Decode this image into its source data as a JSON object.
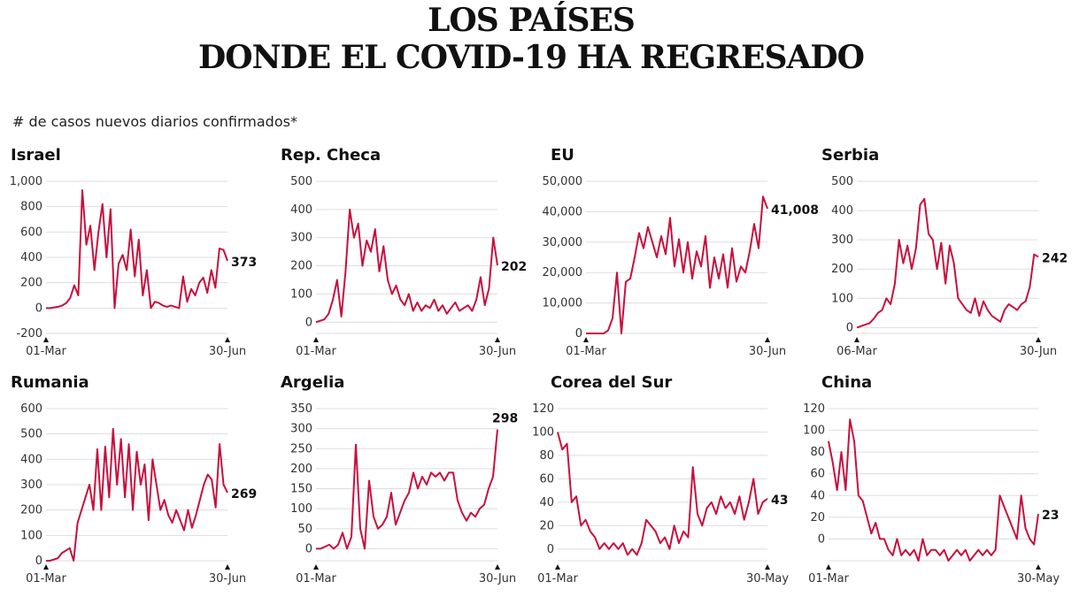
{
  "title_line1": "LOS PAÍSES",
  "title_line2": "DONDE EL COVID-19 HA REGRESADO",
  "subtitle": "# de casos nuevos diarios confirmados*",
  "line_color": "#c8103e",
  "chart_data": [
    {
      "type": "line",
      "title": "Israel",
      "ticks": [
        1000,
        800,
        600,
        400,
        200,
        0,
        -200
      ],
      "ylim": [
        -200,
        1000
      ],
      "xstart": "01-Mar",
      "xend": "30-Jun",
      "end_label": "373",
      "values": [
        0,
        0,
        5,
        10,
        20,
        40,
        80,
        180,
        100,
        930,
        500,
        650,
        300,
        600,
        820,
        400,
        780,
        0,
        350,
        420,
        300,
        620,
        250,
        540,
        100,
        300,
        0,
        50,
        40,
        20,
        10,
        20,
        10,
        0,
        250,
        50,
        150,
        100,
        200,
        240,
        120,
        300,
        160,
        470,
        460,
        373
      ]
    },
    {
      "type": "line",
      "title": "Rep. Checa",
      "ticks": [
        500,
        400,
        300,
        200,
        100,
        0
      ],
      "ylim": [
        -40,
        500
      ],
      "xstart": "01-Mar",
      "xend": "30-Jun",
      "end_label": "202",
      "values": [
        0,
        5,
        10,
        30,
        80,
        150,
        20,
        180,
        400,
        300,
        350,
        200,
        290,
        250,
        330,
        180,
        270,
        150,
        100,
        130,
        80,
        60,
        100,
        40,
        70,
        40,
        60,
        50,
        80,
        40,
        60,
        30,
        50,
        70,
        40,
        50,
        60,
        40,
        80,
        160,
        60,
        120,
        300,
        202
      ]
    },
    {
      "type": "line",
      "title": "EU",
      "ticks": [
        50000,
        40000,
        30000,
        20000,
        10000,
        0
      ],
      "ylim": [
        0,
        50000
      ],
      "xstart": "01-Mar",
      "xend": "30-Jun",
      "end_label": "41,008",
      "values": [
        0,
        0,
        0,
        0,
        0,
        1000,
        5000,
        20000,
        0,
        17000,
        18000,
        25000,
        33000,
        28000,
        35000,
        30000,
        25000,
        32000,
        26000,
        38000,
        22000,
        31000,
        20000,
        30000,
        18000,
        27000,
        22000,
        32000,
        15000,
        25000,
        18000,
        26000,
        15000,
        28000,
        17000,
        22000,
        20000,
        27000,
        36000,
        28000,
        45000,
        41008
      ]
    },
    {
      "type": "line",
      "title": "Serbia",
      "ticks": [
        500,
        400,
        300,
        200,
        100,
        0
      ],
      "ylim": [
        -20,
        500
      ],
      "xstart": "06-Mar",
      "xend": "30-Jun",
      "end_label": "242",
      "values": [
        0,
        5,
        10,
        15,
        30,
        50,
        60,
        100,
        80,
        150,
        300,
        220,
        280,
        200,
        270,
        420,
        440,
        320,
        300,
        200,
        290,
        150,
        280,
        220,
        100,
        80,
        60,
        50,
        100,
        40,
        90,
        60,
        40,
        30,
        20,
        60,
        80,
        70,
        60,
        80,
        90,
        140,
        250,
        242
      ]
    },
    {
      "type": "line",
      "title": "Rumania",
      "ticks": [
        600,
        500,
        400,
        300,
        200,
        100,
        0
      ],
      "ylim": [
        0,
        600
      ],
      "xstart": "01-Mar",
      "xend": "30-Jun",
      "end_label": "269",
      "values": [
        0,
        0,
        5,
        10,
        30,
        40,
        50,
        0,
        150,
        200,
        250,
        300,
        200,
        440,
        200,
        450,
        250,
        520,
        300,
        480,
        250,
        460,
        200,
        430,
        300,
        380,
        160,
        400,
        300,
        200,
        240,
        180,
        150,
        200,
        160,
        120,
        200,
        130,
        180,
        240,
        300,
        340,
        320,
        210,
        460,
        300,
        269
      ]
    },
    {
      "type": "line",
      "title": "Argelia",
      "ticks": [
        350,
        300,
        250,
        200,
        150,
        100,
        50,
        0
      ],
      "ylim": [
        -30,
        350
      ],
      "xstart": "01-Mar",
      "xend": "30-Jun",
      "end_label": "298",
      "values": [
        0,
        0,
        5,
        10,
        0,
        10,
        40,
        0,
        30,
        260,
        50,
        0,
        170,
        80,
        50,
        60,
        80,
        140,
        60,
        90,
        120,
        140,
        190,
        150,
        180,
        160,
        190,
        180,
        190,
        170,
        190,
        190,
        120,
        90,
        70,
        90,
        80,
        100,
        110,
        150,
        180,
        298
      ]
    },
    {
      "type": "line",
      "title": "Corea del Sur",
      "ticks": [
        120,
        100,
        80,
        60,
        40,
        20,
        0
      ],
      "ylim": [
        -10,
        120
      ],
      "xstart": "01-Mar",
      "xend": "30-May",
      "end_label": "43",
      "values": [
        100,
        85,
        90,
        40,
        45,
        20,
        25,
        15,
        10,
        0,
        5,
        0,
        5,
        0,
        5,
        -5,
        0,
        -5,
        5,
        25,
        20,
        15,
        5,
        10,
        0,
        20,
        5,
        15,
        10,
        70,
        30,
        20,
        35,
        40,
        30,
        45,
        35,
        40,
        30,
        45,
        25,
        40,
        60,
        30,
        40,
        43
      ]
    },
    {
      "type": "line",
      "title": "China",
      "ticks": [
        120,
        100,
        80,
        60,
        40,
        20,
        0
      ],
      "ylim": [
        -20,
        120
      ],
      "xstart": "01-Mar",
      "xend": "30-May",
      "end_label": "23",
      "values": [
        90,
        70,
        45,
        80,
        45,
        110,
        90,
        40,
        35,
        20,
        5,
        15,
        0,
        0,
        -10,
        -15,
        0,
        -15,
        -10,
        -15,
        -10,
        -20,
        0,
        -15,
        -10,
        -10,
        -15,
        -10,
        -20,
        -15,
        -10,
        -15,
        -10,
        -20,
        -15,
        -10,
        -15,
        -10,
        -15,
        -10,
        40,
        30,
        20,
        10,
        0,
        40,
        10,
        0,
        -5,
        23
      ]
    }
  ]
}
